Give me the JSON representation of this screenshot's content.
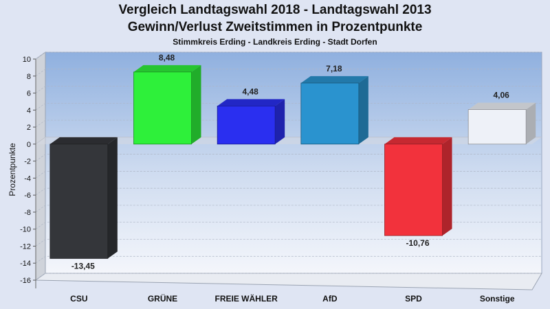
{
  "chart_data": {
    "type": "bar",
    "title": "Vergleich Landtagswahl 2018 - Landtagswahl 2013",
    "subtitle": "Gewinn/Verlust Zweitstimmen in Prozentpunkte",
    "subsubtitle": "Stimmkreis Erding - Landkreis Erding - Stadt Dorfen",
    "ylabel": "Prozentpunkte",
    "xlabel": "",
    "categories": [
      "CSU",
      "GRÜNE",
      "FREIE WÄHLER",
      "AfD",
      "SPD",
      "Sonstige"
    ],
    "values": [
      -13.45,
      8.48,
      4.48,
      7.18,
      -10.76,
      4.06
    ],
    "value_labels": [
      "-13,45",
      "8,48",
      "4,48",
      "7,18",
      "-10,76",
      "4,06"
    ],
    "colors": [
      "#34363a",
      "#2ef03a",
      "#2a2ff0",
      "#2a93cf",
      "#f2323c",
      "#eef1f8"
    ],
    "ylim": [
      -16,
      10
    ],
    "yticks": [
      10,
      8,
      6,
      4,
      2,
      0,
      -2,
      -4,
      -6,
      -8,
      -10,
      -12,
      -14,
      -16
    ],
    "grid": true,
    "legend": "none"
  }
}
